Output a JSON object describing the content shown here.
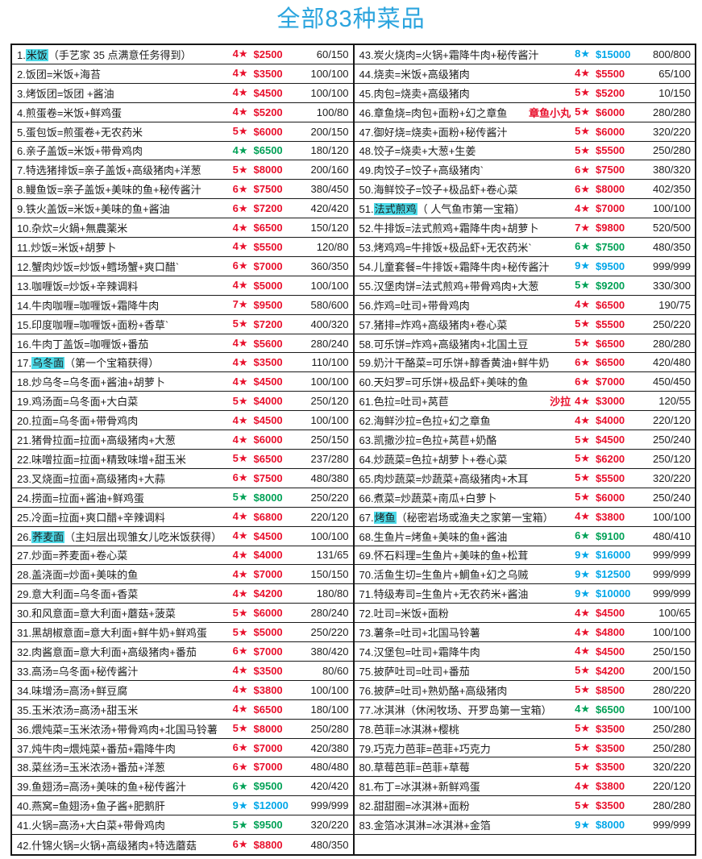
{
  "page": {
    "title": "全部83种菜品",
    "title_color": "#2ba4de"
  },
  "colors": {
    "red": "#e8102c",
    "green": "#00a156",
    "blue": "#00a6e8",
    "highlight": "#4cdbe9",
    "text": "#1c1c1c",
    "border": "#161616"
  },
  "table": {
    "left_rows": [
      {
        "num": 1,
        "hl": "米饭",
        "rest": "（手艺家 35 点满意任务得到）",
        "stars": "4★",
        "price": "$2500",
        "ratio": "60/150",
        "color": "red"
      },
      {
        "num": 2,
        "rest": "饭团=米饭+海苔",
        "stars": "4★",
        "price": "$3500",
        "ratio": "100/100",
        "color": "red"
      },
      {
        "num": 3,
        "rest": "烤饭团=饭团 +酱油",
        "stars": "4★",
        "price": "$4500",
        "ratio": "100/100",
        "color": "red"
      },
      {
        "num": 4,
        "rest": "煎蛋卷=米饭+鲜鸡蛋",
        "stars": "4★",
        "price": "$5200",
        "ratio": "100/80",
        "color": "red"
      },
      {
        "num": 5,
        "rest": "蛋包饭=煎蛋卷+无农药米",
        "stars": "5★",
        "price": "$6000",
        "ratio": "200/150",
        "color": "red"
      },
      {
        "num": 6,
        "rest": "亲子盖饭=米饭+带骨鸡肉",
        "stars": "4★",
        "price": "$6500",
        "ratio": "180/120",
        "color": "green"
      },
      {
        "num": 7,
        "rest": "特选猪排饭=亲子盖饭+高级猪肉+洋葱",
        "stars": "5★",
        "price": "$8000",
        "ratio": "200/160",
        "color": "red"
      },
      {
        "num": 8,
        "rest": "鳗鱼饭=亲子盖饭+美味的鱼+秘传酱汁",
        "stars": "6★",
        "price": "$7500",
        "ratio": "380/450",
        "color": "red"
      },
      {
        "num": 9,
        "rest": "铁火盖饭=米饭+美味的鱼+酱油",
        "stars": "6★",
        "price": "$7200",
        "ratio": "420/420",
        "color": "red"
      },
      {
        "num": 10,
        "rest": "杂炊=火鍋+無農薬米",
        "stars": "4★",
        "price": "$6500",
        "ratio": "150/120",
        "color": "red"
      },
      {
        "num": 11,
        "rest": "炒饭=米饭+胡萝卜",
        "stars": "4★",
        "price": "$5500",
        "ratio": "120/80",
        "color": "red"
      },
      {
        "num": 12,
        "rest": "蟹肉炒饭=炒饭+鳕场蟹+爽口醋`",
        "stars": "6★",
        "price": "$7000",
        "ratio": "360/350",
        "color": "red"
      },
      {
        "num": 13,
        "rest": "咖喱饭=炒饭+辛辣调料",
        "stars": "4★",
        "price": "$5000",
        "ratio": "100/100",
        "color": "red"
      },
      {
        "num": 14,
        "rest": "牛肉咖喱=咖喱饭+霜降牛肉",
        "stars": "7★",
        "price": "$9500",
        "ratio": "580/600",
        "color": "red"
      },
      {
        "num": 15,
        "rest": "印度咖喱=咖喱饭+面粉+香草`",
        "stars": "5★",
        "price": "$7200",
        "ratio": "400/320",
        "color": "red"
      },
      {
        "num": 16,
        "rest": "牛肉丁盖饭=咖喱饭+番茄",
        "stars": "4★",
        "price": "$5600",
        "ratio": "280/240",
        "color": "red"
      },
      {
        "num": 17,
        "hl": "乌冬面",
        "rest": "（第一个宝箱获得）",
        "stars": "4★",
        "price": "$3500",
        "ratio": "110/100",
        "color": "red"
      },
      {
        "num": 18,
        "rest": "炒乌冬=乌冬面+酱油+胡萝卜",
        "stars": "4★",
        "price": "$4500",
        "ratio": "100/100",
        "color": "red"
      },
      {
        "num": 19,
        "rest": "鸡汤面=乌冬面+大白菜",
        "stars": "5★",
        "price": "$4000",
        "ratio": "250/120",
        "color": "red"
      },
      {
        "num": 20,
        "rest": "拉面=乌冬面+带骨鸡肉",
        "stars": "4★",
        "price": "$4500",
        "ratio": "100/100",
        "color": "red"
      },
      {
        "num": 21,
        "rest": "猪骨拉面=拉面+高级猪肉+大葱",
        "stars": "4★",
        "price": "$6000",
        "ratio": "250/150",
        "color": "red"
      },
      {
        "num": 22,
        "rest": "味噌拉面=拉面+精致味增+甜玉米",
        "stars": "5★",
        "price": "$6500",
        "ratio": "237/280",
        "color": "red"
      },
      {
        "num": 23,
        "rest": "叉烧面=拉面+高级猪肉+大蒜",
        "stars": "6★",
        "price": "$7500",
        "ratio": "480/380",
        "color": "red"
      },
      {
        "num": 24,
        "rest": "捞面=拉面+酱油+鲜鸡蛋",
        "stars": "5★",
        "price": "$8000",
        "ratio": "250/220",
        "color": "green"
      },
      {
        "num": 25,
        "rest": "冷面=拉面+爽口醋+辛辣调料",
        "stars": "4★",
        "price": "$6800",
        "ratio": "220/120",
        "color": "red"
      },
      {
        "num": 26,
        "hl": "荞麦面",
        "rest": "（主妇层出现雏女儿吃米饭获得）",
        "stars": "4★",
        "price": "$4500",
        "ratio": "100/100",
        "color": "red"
      },
      {
        "num": 27,
        "rest": "炒面=荞麦面+卷心菜",
        "stars": "4★",
        "price": "$4000",
        "ratio": "131/65",
        "color": "red"
      },
      {
        "num": 28,
        "rest": "盖浇面=炒面+美味的鱼",
        "stars": "4★",
        "price": "$7000",
        "ratio": "150/150",
        "color": "red"
      },
      {
        "num": 29,
        "rest": "意大利面=乌冬面+香菜",
        "stars": "4★",
        "price": "$4200",
        "ratio": "180/80",
        "color": "red"
      },
      {
        "num": 30,
        "rest": "和风意面=意大利面+蘑菇+菠菜",
        "stars": "5★",
        "price": "$6000",
        "ratio": "280/240",
        "color": "red"
      },
      {
        "num": 31,
        "rest": "黑胡椒意面=意大利面+鲜牛奶+鲜鸡蛋",
        "stars": "5★",
        "price": "$5000",
        "ratio": "250/220",
        "color": "red"
      },
      {
        "num": 32,
        "rest": "肉酱意面=意大利面+高级猪肉+番茄",
        "stars": "6★",
        "price": "$7000",
        "ratio": "380/420",
        "color": "red"
      },
      {
        "num": 33,
        "rest": "高汤=乌冬面+秘传酱汁",
        "stars": "4★",
        "price": "$3500",
        "ratio": "80/60",
        "color": "red"
      },
      {
        "num": 34,
        "rest": "味增汤=高汤+鲜豆腐",
        "stars": "4★",
        "price": "$3800",
        "ratio": "100/100",
        "color": "red"
      },
      {
        "num": 35,
        "rest": "玉米浓汤=高汤+甜玉米",
        "stars": "4★",
        "price": "$6500",
        "ratio": "180/100",
        "color": "red"
      },
      {
        "num": 36,
        "rest": "煨炖菜=玉米浓汤+带骨鸡肉+北国马铃薯",
        "stars": "5★",
        "price": "$8000",
        "ratio": "250/280",
        "color": "red"
      },
      {
        "num": 37,
        "rest": "炖牛肉=煨炖菜+番茄+霜降牛肉",
        "stars": "6★",
        "price": "$7000",
        "ratio": "420/380",
        "color": "red"
      },
      {
        "num": 38,
        "rest": "菜丝汤=玉米浓汤+番茄+洋葱",
        "stars": "6★",
        "price": "$7000",
        "ratio": "480/480",
        "color": "red"
      },
      {
        "num": 39,
        "rest": "鱼翅汤=高汤+美味的鱼+秘传酱汁",
        "stars": "6★",
        "price": "$9500",
        "ratio": "420/420",
        "color": "green"
      },
      {
        "num": 40,
        "rest": "燕窝=鱼翅汤+鱼子酱+肥鹅肝",
        "stars": "9★",
        "price": "$12000",
        "ratio": "999/999",
        "color": "blue"
      },
      {
        "num": 41,
        "rest": "火锅=高汤+大白菜+带骨鸡肉",
        "stars": "5★",
        "price": "$9500",
        "ratio": "320/220",
        "color": "green"
      },
      {
        "num": 42,
        "rest": "什锦火锅=火锅+高级猪肉+特选蘑菇",
        "stars": "6★",
        "price": "$8800",
        "ratio": "480/350",
        "color": "red"
      }
    ],
    "right_rows": [
      {
        "num": 43,
        "rest": "炭火烧肉=火锅+霜降牛肉+秘传酱汁",
        "stars": "8★",
        "price": "$15000",
        "ratio": "800/800",
        "color": "blue"
      },
      {
        "num": 44,
        "rest": "烧卖=米饭+高级猪肉",
        "stars": "4★",
        "price": "$5500",
        "ratio": "65/100",
        "color": "red"
      },
      {
        "num": 45,
        "rest": "肉包=烧卖+高级猪肉",
        "stars": "5★",
        "price": "$5200",
        "ratio": "10/150",
        "color": "red"
      },
      {
        "num": 46,
        "rest": "章鱼烧=肉包+面粉+幻之章鱼",
        "note": "章鱼小丸",
        "stars": "5★",
        "price": "$6000",
        "ratio": "280/280",
        "color": "red"
      },
      {
        "num": 47,
        "rest": "御好烧=烧卖+面粉+秘传酱汁",
        "stars": "5★",
        "price": "$6000",
        "ratio": "320/220",
        "color": "red"
      },
      {
        "num": 48,
        "rest": "饺子=烧卖+大葱+生姜",
        "stars": "5★",
        "price": "$5500",
        "ratio": "250/280",
        "color": "red"
      },
      {
        "num": 49,
        "rest": "肉饺子=饺子+高级猪肉`",
        "stars": "6★",
        "price": "$7500",
        "ratio": "380/320",
        "color": "red"
      },
      {
        "num": 50,
        "rest": "海鲜饺子=饺子+极品虾+卷心菜",
        "stars": "6★",
        "price": "$8000",
        "ratio": "402/350",
        "color": "red"
      },
      {
        "num": 51,
        "hl": "法式煎鸡",
        "rest": "（ 人气鱼市第一宝箱）",
        "stars": "4★",
        "price": "$7000",
        "ratio": "100/100",
        "color": "red"
      },
      {
        "num": 52,
        "rest": "牛排饭=法式煎鸡+霜降牛肉+胡萝卜",
        "stars": "7★",
        "price": "$9800",
        "ratio": "520/500",
        "color": "red"
      },
      {
        "num": 53,
        "rest": "烤鸡鸡=牛排饭+极品虾+无农药米`",
        "stars": "6★",
        "price": "$7500",
        "ratio": "480/350",
        "color": "green"
      },
      {
        "num": 54,
        "rest": "儿童套餐=牛排饭+霜降牛肉+秘传酱汁",
        "stars": "9★",
        "price": "$9500",
        "ratio": "999/999",
        "color": "blue"
      },
      {
        "num": 55,
        "rest": "汉堡肉饼=法式煎鸡+带骨鸡肉+大葱",
        "stars": "5★",
        "price": "$9200",
        "ratio": "330/300",
        "color": "green"
      },
      {
        "num": 56,
        "rest": "炸鸡=吐司+带骨鸡肉",
        "stars": "4★",
        "price": "$6500",
        "ratio": "190/75",
        "color": "red"
      },
      {
        "num": 57,
        "rest": "猪排=炸鸡+高级猪肉+卷心菜",
        "stars": "5★",
        "price": "$5500",
        "ratio": "250/220",
        "color": "red"
      },
      {
        "num": 58,
        "rest": "可乐饼=炸鸡+高级猪肉+北国土豆",
        "stars": "5★",
        "price": "$6500",
        "ratio": "280/280",
        "color": "red"
      },
      {
        "num": 59,
        "rest": "奶汁干酪菜=可乐饼+醇香黄油+鲜牛奶",
        "stars": "6★",
        "price": "$6500",
        "ratio": "420/480",
        "color": "red"
      },
      {
        "num": 60,
        "rest": "天妇罗=可乐饼+极品虾+美味的鱼",
        "stars": "6★",
        "price": "$7000",
        "ratio": "450/450",
        "color": "red"
      },
      {
        "num": 61,
        "rest": "色拉=吐司+莴苣",
        "note": "沙拉",
        "stars": "4★",
        "price": "$3000",
        "ratio": "120/55",
        "color": "red"
      },
      {
        "num": 62,
        "rest": "海鲜沙拉=色拉+幻之章鱼",
        "stars": "4★",
        "price": "$4000",
        "ratio": "220/120",
        "color": "red"
      },
      {
        "num": 63,
        "rest": "凯撒沙拉=色拉+莴苣+奶酪",
        "stars": "5★",
        "price": "$4500",
        "ratio": "250/240",
        "color": "red"
      },
      {
        "num": 64,
        "rest": "炒蔬菜=色拉+胡萝卜+卷心菜",
        "stars": "5★",
        "price": "$6200",
        "ratio": "250/120",
        "color": "red"
      },
      {
        "num": 65,
        "rest": "肉炒蔬菜=炒蔬菜+高级猪肉+木耳",
        "stars": "5★",
        "price": "$5500",
        "ratio": "320/220",
        "color": "red"
      },
      {
        "num": 66,
        "rest": "煮菜=炒蔬菜+南瓜+白萝卜",
        "stars": "5★",
        "price": "$6000",
        "ratio": "250/240",
        "color": "red"
      },
      {
        "num": 67,
        "hl": "烤鱼",
        "rest": "（秘密岩场或渔夫之家第一宝箱）",
        "stars": "4★",
        "price": "$3800",
        "ratio": "100/100",
        "color": "red"
      },
      {
        "num": 68,
        "rest": "生鱼片=烤鱼+美味的鱼+酱油",
        "stars": "6★",
        "price": "$9100",
        "ratio": "480/410",
        "color": "green"
      },
      {
        "num": 69,
        "rest": "怀石料理=生鱼片+美味的鱼+松茸",
        "stars": "9★",
        "price": "$16000",
        "ratio": "999/999",
        "color": "blue"
      },
      {
        "num": 70,
        "rest": "活鱼生切=生鱼片+鯛鱼+幻之乌贼",
        "stars": "9★",
        "price": "$12500",
        "ratio": "999/999",
        "color": "blue"
      },
      {
        "num": 71,
        "rest": "特级寿司=生鱼片+无农药米+酱油",
        "stars": "9★",
        "price": "$10000",
        "ratio": "999/999",
        "color": "blue"
      },
      {
        "num": 72,
        "rest": "吐司=米饭+面粉",
        "stars": "4★",
        "price": "$4500",
        "ratio": "100/65",
        "color": "red"
      },
      {
        "num": 73,
        "rest": "薯条=吐司+北国马铃薯",
        "stars": "4★",
        "price": "$4800",
        "ratio": "100/100",
        "color": "red"
      },
      {
        "num": 74,
        "rest": "汉堡包=吐司+霜降牛肉",
        "stars": "4★",
        "price": "$4500",
        "ratio": "250/150",
        "color": "red"
      },
      {
        "num": 75,
        "rest": "披萨吐司=吐司+番茄",
        "stars": "5★",
        "price": "$4200",
        "ratio": "200/150",
        "color": "red"
      },
      {
        "num": 76,
        "rest": "披萨=吐司+熟奶酪+高级猪肉",
        "stars": "5★",
        "price": "$8500",
        "ratio": "280/220",
        "color": "red"
      },
      {
        "num": 77,
        "rest": "冰淇淋（休闲牧场、开罗岛第一宝箱）",
        "stars": "4★",
        "price": "$6500",
        "ratio": "100/100",
        "color": "green"
      },
      {
        "num": 78,
        "rest": "芭菲=冰淇淋+樱桃",
        "stars": "5★",
        "price": "$3500",
        "ratio": "250/280",
        "color": "red"
      },
      {
        "num": 79,
        "rest": "巧克力芭菲=芭菲+巧克力",
        "stars": "5★",
        "price": "$3500",
        "ratio": "250/280",
        "color": "red"
      },
      {
        "num": 80,
        "rest": "草莓芭菲=芭菲+草莓",
        "stars": "5★",
        "price": "$3500",
        "ratio": "320/220",
        "color": "red"
      },
      {
        "num": 81,
        "rest": "布丁=冰淇淋+新鲜鸡蛋",
        "stars": "4★",
        "price": "$3800",
        "ratio": "220/120",
        "color": "red"
      },
      {
        "num": 82,
        "rest": "甜甜圈=冰淇淋+面粉",
        "stars": "5★",
        "price": "$3500",
        "ratio": "280/280",
        "color": "red"
      },
      {
        "num": 83,
        "rest": "金箔冰淇淋=冰淇淋+金箔",
        "stars": "9★",
        "price": "$8000",
        "ratio": "999/999",
        "color": "blue"
      },
      {
        "empty": true
      }
    ]
  }
}
